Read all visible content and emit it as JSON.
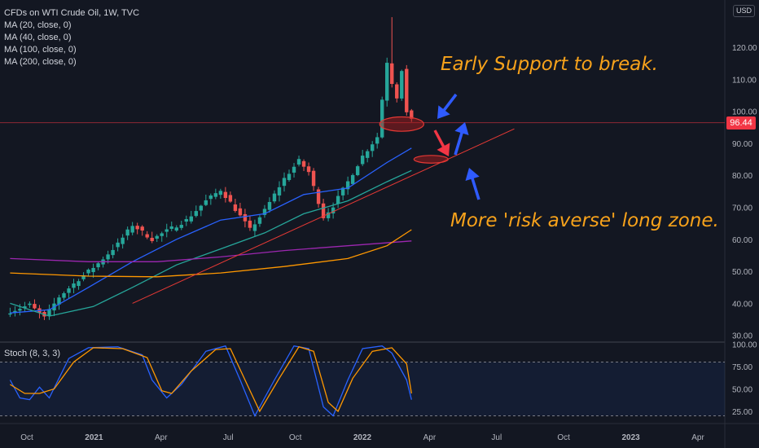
{
  "legend": {
    "title": "CFDs on WTI Crude Oil, 1W, TVC",
    "ma20": "MA (20, close, 0)",
    "ma40": "MA (40, close, 0)",
    "ma100": "MA (100, close, 0)",
    "ma200": "MA (200, close, 0)"
  },
  "stoch_label": "Stoch (8, 3, 3)",
  "currency": "USD",
  "annotations": {
    "support": "Early Support to break.",
    "long_zone": "More 'risk averse' long zone."
  },
  "colors": {
    "background": "#131722",
    "up": "#26a69a",
    "down": "#ef5350",
    "ma20": "#2962ff",
    "ma40": "#26a69a",
    "ma100": "#9c27b0",
    "ma200": "#ff9800",
    "annotation": "#f7a21b",
    "arrow_blue": "#2f5bff",
    "arrow_red": "#f23645"
  },
  "chart_data": [
    {
      "type": "candlestick",
      "title": "CFDs on WTI Crude Oil, 1W, TVC",
      "x_ticks": [
        "Oct",
        "2021",
        "Apr",
        "Jul",
        "Oct",
        "2022",
        "Apr",
        "Jul",
        "Oct",
        "2023",
        "Apr"
      ],
      "y_ticks": [
        30,
        40,
        50,
        60,
        70,
        80,
        90,
        100,
        110,
        120
      ],
      "ylim": [
        29,
        128
      ],
      "last_price": "96.44",
      "anchors": [
        [
          "2020-09-07",
          37.5
        ],
        [
          "2020-10-05",
          39.5
        ],
        [
          "2020-10-26",
          35.5
        ],
        [
          "2020-11-16",
          42.0
        ],
        [
          "2020-12-14",
          47.5
        ],
        [
          "2021-01-11",
          52.5
        ],
        [
          "2021-02-08",
          58.5
        ],
        [
          "2021-03-01",
          64.5
        ],
        [
          "2021-03-29",
          60.0
        ],
        [
          "2021-04-26",
          63.5
        ],
        [
          "2021-05-17",
          66.0
        ],
        [
          "2021-06-14",
          72.0
        ],
        [
          "2021-07-05",
          75.5
        ],
        [
          "2021-07-19",
          71.5
        ],
        [
          "2021-08-16",
          63.0
        ],
        [
          "2021-09-06",
          69.0
        ],
        [
          "2021-10-04",
          79.0
        ],
        [
          "2021-10-25",
          84.5
        ],
        [
          "2021-11-08",
          81.0
        ],
        [
          "2021-11-29",
          67.0
        ],
        [
          "2021-12-13",
          70.5
        ],
        [
          "2022-01-03",
          78.0
        ],
        [
          "2022-01-24",
          86.0
        ],
        [
          "2022-02-14",
          92.0
        ],
        [
          "2022-02-28",
          115.5
        ],
        [
          "2022-03-07",
          109.0
        ],
        [
          "2022-03-14",
          104.5
        ],
        [
          "2022-03-21",
          113.0
        ],
        [
          "2022-03-28",
          99.5
        ],
        [
          "2022-04-04",
          97.0
        ]
      ],
      "spike": {
        "date": "2022-03-07",
        "high": 129.4
      },
      "moving_averages": [
        {
          "name": "MA (20, close, 0)",
          "points": [
            [
              "2020-09-07",
              37
            ],
            [
              "2020-11-02",
              38
            ],
            [
              "2020-12-28",
              45
            ],
            [
              "2021-03-01",
              53
            ],
            [
              "2021-05-03",
              60
            ],
            [
              "2021-07-05",
              66
            ],
            [
              "2021-09-06",
              68
            ],
            [
              "2021-11-01",
              74
            ],
            [
              "2022-01-03",
              76
            ],
            [
              "2022-02-28",
              84
            ],
            [
              "2022-04-04",
              88.5
            ]
          ]
        },
        {
          "name": "MA (40, close, 0)",
          "points": [
            [
              "2020-09-07",
              40
            ],
            [
              "2020-11-02",
              36
            ],
            [
              "2021-01-04",
              39
            ],
            [
              "2021-03-01",
              45
            ],
            [
              "2021-05-03",
              52
            ],
            [
              "2021-07-05",
              57
            ],
            [
              "2021-09-06",
              62
            ],
            [
              "2021-11-01",
              68
            ],
            [
              "2022-01-03",
              72
            ],
            [
              "2022-02-28",
              78
            ],
            [
              "2022-04-04",
              81.5
            ]
          ]
        },
        {
          "name": "MA (100, close, 0)",
          "points": [
            [
              "2020-09-07",
              54
            ],
            [
              "2020-12-28",
              53
            ],
            [
              "2021-04-05",
              53
            ],
            [
              "2021-07-05",
              54.5
            ],
            [
              "2021-10-04",
              56.5
            ],
            [
              "2022-01-03",
              58
            ],
            [
              "2022-04-04",
              59.5
            ]
          ]
        },
        {
          "name": "MA (200, close, 0)",
          "points": [
            [
              "2020-09-07",
              49.5
            ],
            [
              "2020-12-28",
              48.5
            ],
            [
              "2021-04-05",
              48.3
            ],
            [
              "2021-07-05",
              49.5
            ],
            [
              "2021-10-04",
              51.5
            ],
            [
              "2022-01-03",
              54
            ],
            [
              "2022-02-28",
              58
            ],
            [
              "2022-04-04",
              63
            ]
          ]
        }
      ],
      "trendline": [
        [
          "2021-03-01",
          40.0
        ],
        [
          "2022-08-29",
          94.5
        ]
      ],
      "horizontal_line": 96.44,
      "zones": [
        {
          "center_date": "2022-03-21",
          "center_price": 96.0,
          "width_weeks": 9,
          "height": 4.5
        },
        {
          "center_date": "2022-05-02",
          "center_price": 85.0,
          "width_weeks": 7,
          "height": 2.4
        }
      ]
    },
    {
      "type": "line",
      "title": "Stoch (8, 3, 3)",
      "y_ticks": [
        25.0,
        50.0,
        75.0,
        100.0
      ],
      "ylim": [
        18,
        102
      ],
      "bands": [
        20,
        80
      ],
      "series": [
        {
          "name": "%K",
          "color": "#2962ff",
          "points": [
            [
              "2020-09-07",
              60
            ],
            [
              "2020-09-21",
              40
            ],
            [
              "2020-10-05",
              38
            ],
            [
              "2020-10-19",
              52
            ],
            [
              "2020-11-02",
              40
            ],
            [
              "2020-11-30",
              84
            ],
            [
              "2020-12-28",
              96
            ],
            [
              "2021-02-08",
              97
            ],
            [
              "2021-03-15",
              88
            ],
            [
              "2021-03-29",
              60
            ],
            [
              "2021-04-19",
              40
            ],
            [
              "2021-05-10",
              55
            ],
            [
              "2021-06-14",
              92
            ],
            [
              "2021-07-12",
              98
            ],
            [
              "2021-08-02",
              60
            ],
            [
              "2021-08-23",
              20
            ],
            [
              "2021-09-20",
              60
            ],
            [
              "2021-10-18",
              98
            ],
            [
              "2021-11-08",
              95
            ],
            [
              "2021-11-29",
              30
            ],
            [
              "2021-12-13",
              20
            ],
            [
              "2022-01-03",
              60
            ],
            [
              "2022-01-24",
              95
            ],
            [
              "2022-02-21",
              98
            ],
            [
              "2022-03-07",
              90
            ],
            [
              "2022-03-28",
              60
            ],
            [
              "2022-04-04",
              38
            ]
          ]
        },
        {
          "name": "%D",
          "color": "#ff9800",
          "points": [
            [
              "2020-09-07",
              55
            ],
            [
              "2020-09-28",
              45
            ],
            [
              "2020-10-19",
              45
            ],
            [
              "2020-11-09",
              50
            ],
            [
              "2020-12-07",
              80
            ],
            [
              "2021-01-04",
              96
            ],
            [
              "2021-02-15",
              95
            ],
            [
              "2021-03-22",
              85
            ],
            [
              "2021-04-12",
              48
            ],
            [
              "2021-04-26",
              45
            ],
            [
              "2021-05-24",
              70
            ],
            [
              "2021-06-28",
              94
            ],
            [
              "2021-07-19",
              95
            ],
            [
              "2021-08-09",
              60
            ],
            [
              "2021-08-30",
              25
            ],
            [
              "2021-09-27",
              62
            ],
            [
              "2021-10-25",
              97
            ],
            [
              "2021-11-15",
              92
            ],
            [
              "2021-12-06",
              35
            ],
            [
              "2021-12-20",
              25
            ],
            [
              "2022-01-10",
              62
            ],
            [
              "2022-02-07",
              92
            ],
            [
              "2022-03-07",
              96
            ],
            [
              "2022-03-28",
              78
            ],
            [
              "2022-04-04",
              45
            ]
          ]
        }
      ]
    }
  ]
}
